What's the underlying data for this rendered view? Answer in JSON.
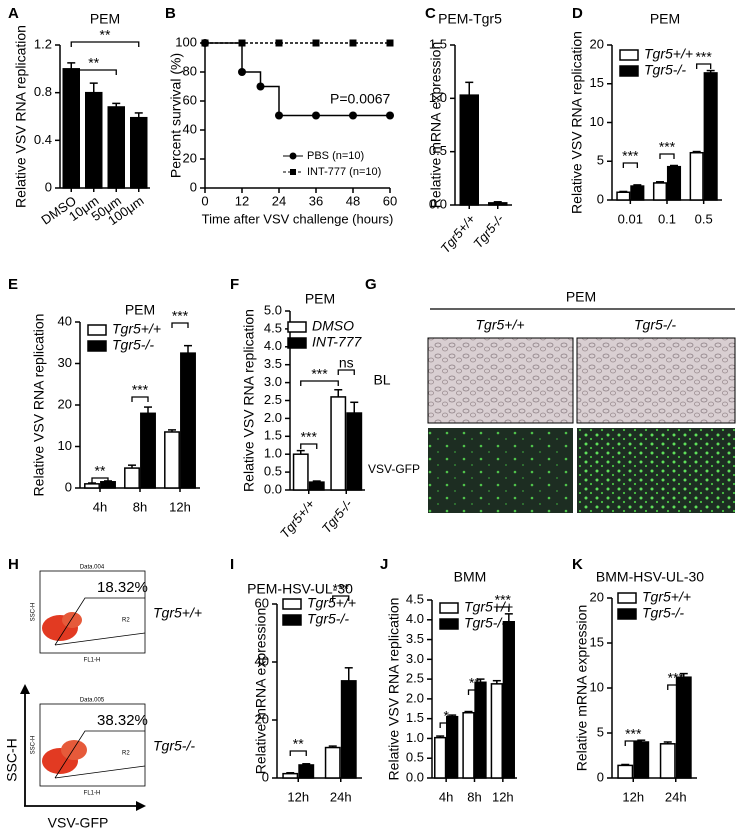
{
  "chart_data": [
    {
      "type": "bar",
      "panel": "A",
      "title": "PEM",
      "ylabel": "Relative VSV RNA replication",
      "categories": [
        "DMSO",
        "10μm",
        "50μm",
        "100μm"
      ],
      "series": [
        {
          "color": "#000000",
          "values": [
            1.0,
            0.8,
            0.68,
            0.59
          ],
          "errors": [
            0.05,
            0.08,
            0.03,
            0.04
          ]
        }
      ],
      "ylim": [
        0,
        1.2
      ],
      "yticks": [
        {
          "value": 0,
          "label": "0"
        },
        0.4,
        0.8,
        1.2
      ],
      "annotations": [
        "**",
        "**"
      ]
    },
    {
      "type": "line",
      "panel": "B",
      "ylabel": "Percent survival (%)",
      "xlabel": "Time after VSV challenge (hours)",
      "series": [
        {
          "name": "PBS (n=10)",
          "color": "#000000",
          "marker": "circle",
          "dash": "solid",
          "x": [
            0,
            12,
            18,
            24,
            36,
            48,
            60
          ],
          "values": [
            100,
            80,
            70,
            50,
            50,
            50,
            50
          ]
        },
        {
          "name": "INT-777 (n=10)",
          "color": "#000000",
          "marker": "square",
          "dash": "dashed",
          "x": [
            0,
            12,
            24,
            36,
            48,
            60
          ],
          "values": [
            100,
            100,
            100,
            100,
            100,
            100
          ]
        }
      ],
      "xlim": [
        0,
        60
      ],
      "xticks": [
        0,
        12,
        24,
        36,
        48,
        60
      ],
      "ylim": [
        0,
        100
      ],
      "yticks": [
        0,
        20,
        40,
        60,
        80,
        100
      ],
      "annotations": [
        "P=0.0067"
      ]
    },
    {
      "type": "bar",
      "panel": "C",
      "title": "PEM-Tgr5",
      "ylabel": "Relative mRNA expression",
      "categories": [
        "Tgr5+/+",
        "Tgr5-/-"
      ],
      "series": [
        {
          "color": "#000000",
          "values": [
            1.03,
            0.02
          ],
          "errors": [
            0.12,
            0.01
          ]
        }
      ],
      "ylim": [
        0,
        1.5
      ],
      "yticks": [
        {
          "value": 0,
          "label": "0.0"
        },
        0.5,
        {
          "value": 1,
          "label": "1.0"
        },
        1.5
      ],
      "annotations": []
    },
    {
      "type": "bar",
      "panel": "D",
      "title": "PEM",
      "ylabel": "Relative VSV RNA replication",
      "categories": [
        "0.01",
        "0.1",
        "0.5"
      ],
      "series": [
        {
          "name": "Tgr5+/+",
          "color": "#ffffff",
          "values": [
            1.0,
            2.2,
            6.1
          ],
          "errors": [
            0.1,
            0.15,
            0.15
          ]
        },
        {
          "name": "Tgr5-/-",
          "color": "#000000",
          "values": [
            1.8,
            4.3,
            16.4
          ],
          "errors": [
            0.15,
            0.15,
            0.3
          ]
        }
      ],
      "ylim": [
        0,
        20
      ],
      "yticks": [
        0,
        5,
        10,
        15,
        20
      ],
      "annotations": [
        "***",
        "***",
        "***"
      ]
    },
    {
      "type": "bar",
      "panel": "E",
      "title": "PEM",
      "ylabel": "Relative VSV RNA replication",
      "categories": [
        "4h",
        "8h",
        "12h"
      ],
      "series": [
        {
          "name": "Tgr5+/+",
          "color": "#ffffff",
          "values": [
            1.0,
            4.8,
            13.5
          ],
          "errors": [
            0.2,
            0.7,
            0.5
          ]
        },
        {
          "name": "Tgr5-/-",
          "color": "#000000",
          "values": [
            1.5,
            18,
            32.5
          ],
          "errors": [
            0.2,
            1.5,
            1.8
          ]
        }
      ],
      "ylim": [
        0,
        40
      ],
      "yticks": [
        0,
        10,
        20,
        30,
        40
      ],
      "annotations": [
        "**",
        "***",
        "***"
      ]
    },
    {
      "type": "bar",
      "panel": "F",
      "title": "PEM",
      "ylabel": "Relative VSV RNA replication",
      "categories": [
        "Tgr5+/+",
        "Tgr5-/-"
      ],
      "series": [
        {
          "name": "DMSO",
          "color": "#ffffff",
          "values": [
            1.0,
            2.6
          ],
          "errors": [
            0.1,
            0.2
          ]
        },
        {
          "name": "INT-777",
          "color": "#000000",
          "values": [
            0.22,
            2.15
          ],
          "errors": [
            0.03,
            0.3
          ]
        }
      ],
      "ylim": [
        0,
        5
      ],
      "yticks": [
        {
          "value": 0,
          "label": "0.0"
        },
        0.5,
        {
          "value": 1,
          "label": "1.0"
        },
        1.5,
        {
          "value": 2,
          "label": "2.0"
        },
        2.5,
        {
          "value": 3,
          "label": "3.0"
        },
        3.5,
        {
          "value": 4,
          "label": "4.0"
        },
        4.5,
        {
          "value": 5,
          "label": "5.0"
        }
      ],
      "annotations": [
        "***",
        "***",
        "ns"
      ]
    },
    {
      "type": "micrograph",
      "panel": "G",
      "title": "PEM",
      "columns": [
        "Tgr5+/+",
        "Tgr5-/-"
      ],
      "rows": [
        "BL",
        "VSV-GFP"
      ]
    },
    {
      "type": "flow",
      "panel": "H",
      "ylabel": "SSC-H",
      "xlabel": "VSV-GFP",
      "plots": [
        {
          "file": "Data.004",
          "gate_percent": "18.32%",
          "gate": "R2",
          "sample": "Tgr5+/+",
          "axis_y": "SSC-H",
          "axis_x": "FL1-H"
        },
        {
          "file": "Data.005",
          "gate_percent": "38.32%",
          "gate": "R2",
          "sample": "Tgr5-/-",
          "axis_y": "SSC-H",
          "axis_x": "FL1-H"
        }
      ]
    },
    {
      "type": "bar",
      "panel": "I",
      "title": "PEM-HSV-UL-30",
      "ylabel": "Relative mRNA expression",
      "categories": [
        "12h",
        "24h"
      ],
      "series": [
        {
          "name": "Tgr5+/+",
          "color": "#ffffff",
          "values": [
            1.5,
            10.5
          ],
          "errors": [
            0.3,
            0.5
          ]
        },
        {
          "name": "Tgr5-/-",
          "color": "#000000",
          "values": [
            4.5,
            33.5
          ],
          "errors": [
            0.4,
            4.5
          ]
        }
      ],
      "ylim": [
        0,
        60
      ],
      "yticks": [
        0,
        20,
        40,
        60
      ],
      "annotations": [
        "**",
        "***"
      ]
    },
    {
      "type": "bar",
      "panel": "J",
      "title": "BMM",
      "ylabel": "Relative VSV RNA replication",
      "categories": [
        "4h",
        "8h",
        "12h"
      ],
      "series": [
        {
          "name": "Tgr5+/+",
          "color": "#ffffff",
          "values": [
            1.02,
            1.65,
            2.38
          ],
          "errors": [
            0.04,
            0.03,
            0.08
          ]
        },
        {
          "name": "Tgr5-/-",
          "color": "#000000",
          "values": [
            1.55,
            2.42,
            3.95
          ],
          "errors": [
            0.04,
            0.08,
            0.2
          ]
        }
      ],
      "ylim": [
        0,
        4.5
      ],
      "yticks": [
        {
          "value": 0,
          "label": "0.0"
        },
        0.5,
        {
          "value": 1,
          "label": "1.0"
        },
        1.5,
        {
          "value": 2,
          "label": "2.0"
        },
        2.5,
        {
          "value": 3,
          "label": "3.0"
        },
        3.5,
        {
          "value": 4,
          "label": "4.0"
        },
        4.5
      ],
      "annotations": [
        "*",
        "**",
        "***"
      ]
    },
    {
      "type": "bar",
      "panel": "K",
      "title": "BMM-HSV-UL-30",
      "ylabel": "Relative mRNA expression",
      "categories": [
        "12h",
        "24h"
      ],
      "series": [
        {
          "name": "Tgr5+/+",
          "color": "#ffffff",
          "values": [
            1.4,
            3.8
          ],
          "errors": [
            0.1,
            0.2
          ]
        },
        {
          "name": "Tgr5-/-",
          "color": "#000000",
          "values": [
            4.0,
            11.2
          ],
          "errors": [
            0.2,
            0.4
          ]
        }
      ],
      "ylim": [
        0,
        20
      ],
      "yticks": [
        0,
        5,
        10,
        15,
        20
      ],
      "annotations": [
        "***",
        "***"
      ]
    }
  ]
}
